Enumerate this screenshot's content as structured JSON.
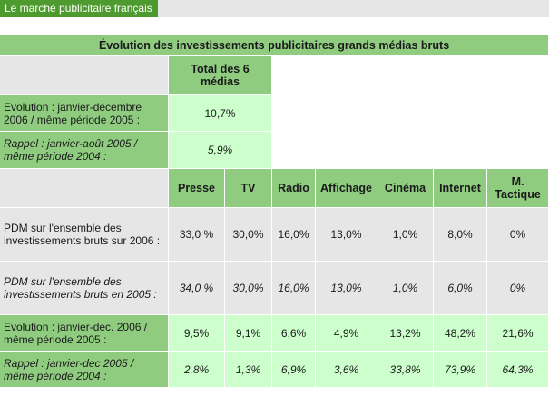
{
  "header": {
    "label": "Le marché publicitaire français"
  },
  "table": {
    "title": "Évolution des investissements publicitaires grands médias bruts",
    "total_header": "Total des 6 médias",
    "total_rows": [
      {
        "label": "Evolution : janvier-décembre 2006 / même période 2005 :",
        "value": "10,7%"
      },
      {
        "label": "Rappel : janvier-août 2005 / même période 2004 :",
        "value": "5,9%"
      }
    ],
    "media_columns": [
      "Presse",
      "TV",
      "Radio",
      "Affichage",
      "Cinéma",
      "Internet",
      "M. Tactique"
    ],
    "pdm_rows": [
      {
        "label": "PDM sur l'ensemble des investissements bruts sur 2006 :",
        "values": [
          "33,0 %",
          "30,0%",
          "16,0%",
          "13,0%",
          "1,0%",
          "8,0%",
          "0%"
        ]
      },
      {
        "label": "PDM sur l'ensemble des investissements bruts en 2005 :",
        "values": [
          "34,0 %",
          "30,0%",
          "16,0%",
          "13,0%",
          "1,0%",
          "6,0%",
          "0%"
        ]
      }
    ],
    "evolution_rows": [
      {
        "label": "Evolution : janvier-dec. 2006 / même période 2005 :",
        "values": [
          "9,5%",
          "9,1%",
          "6,6%",
          "4,9%",
          "13,2%",
          "48,2%",
          "21,6%"
        ]
      },
      {
        "label": "Rappel : janvier-dec 2005 / même période 2004 :",
        "values": [
          "2,8%",
          "1,3%",
          "6,9%",
          "3,6%",
          "33,8%",
          "73,9%",
          "64,3%"
        ]
      }
    ]
  },
  "colors": {
    "header_green": "#4d9a2e",
    "cell_green": "#8fcc80",
    "cell_light_green": "#ccffcc",
    "cell_grey": "#e6e6e6"
  }
}
